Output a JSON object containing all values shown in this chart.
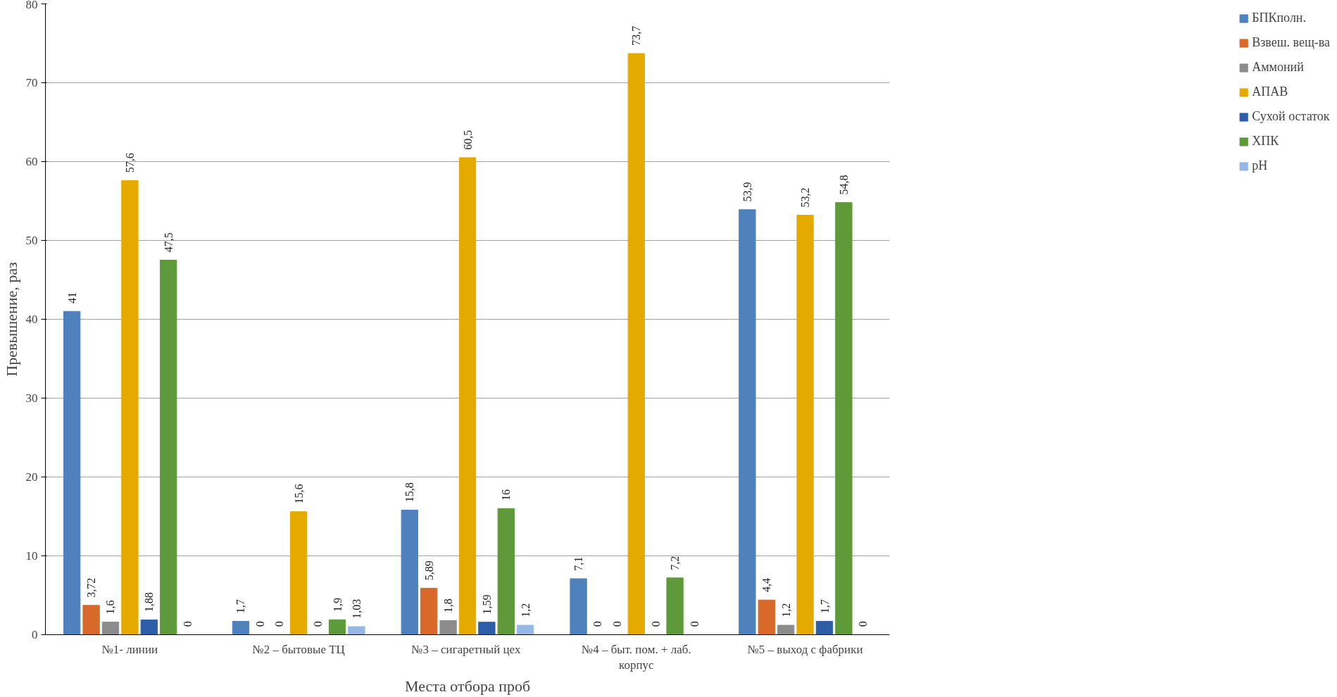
{
  "chart_data": {
    "type": "bar",
    "xlabel": "Места отбора проб",
    "ylabel": "Превышение, раз",
    "categories": [
      "№1- линии",
      "№2 – бытовые ТЦ",
      "№3 – сигаретный  цех",
      "№4 – быт. пом. + лаб. корпус",
      "№5 – выход с фабрики"
    ],
    "series": [
      {
        "name": "БПКполн.",
        "color": "#4f81bd",
        "values": [
          41,
          1.7,
          15.8,
          7.1,
          53.9
        ],
        "value_labels": [
          "41",
          "1,7",
          "15,8",
          "7,1",
          "53,9"
        ]
      },
      {
        "name": "Взвеш. вещ-ва",
        "color": "#d8692b",
        "values": [
          3.72,
          0,
          5.89,
          0,
          4.4
        ],
        "value_labels": [
          "3,72",
          "0",
          "5,89",
          "0",
          "4,4"
        ]
      },
      {
        "name": "Аммоний",
        "color": "#8c8c8c",
        "values": [
          1.6,
          0,
          1.8,
          0,
          1.2
        ],
        "value_labels": [
          "1,6",
          "0",
          "1,8",
          "0",
          "1,2"
        ]
      },
      {
        "name": "АПАВ",
        "color": "#e5aa00",
        "values": [
          57.6,
          15.6,
          60.5,
          73.7,
          53.2
        ],
        "value_labels": [
          "57,6",
          "15,6",
          "60,5",
          "73,7",
          "53,2"
        ]
      },
      {
        "name": "Сухой остаток",
        "color": "#2e5ea8",
        "values": [
          1.88,
          0,
          1.59,
          0,
          1.7
        ],
        "value_labels": [
          "1,88",
          "0",
          "1,59",
          "0",
          "1,7"
        ]
      },
      {
        "name": "ХПК",
        "color": "#5e9a3a",
        "values": [
          47.5,
          1.9,
          16,
          7.2,
          54.8
        ],
        "value_labels": [
          "47,5",
          "1,9",
          "16",
          "7,2",
          "54,8"
        ]
      },
      {
        "name": "pH",
        "color": "#95b8e4",
        "values": [
          0,
          1.03,
          1.2,
          0,
          0
        ],
        "value_labels": [
          "0",
          "1,03",
          "1,2",
          "0",
          "0"
        ]
      }
    ],
    "ylim": [
      0,
      80
    ],
    "yticks": [
      0,
      10,
      20,
      30,
      40,
      50,
      60,
      70,
      80
    ],
    "grid": "y",
    "legend": "right"
  }
}
